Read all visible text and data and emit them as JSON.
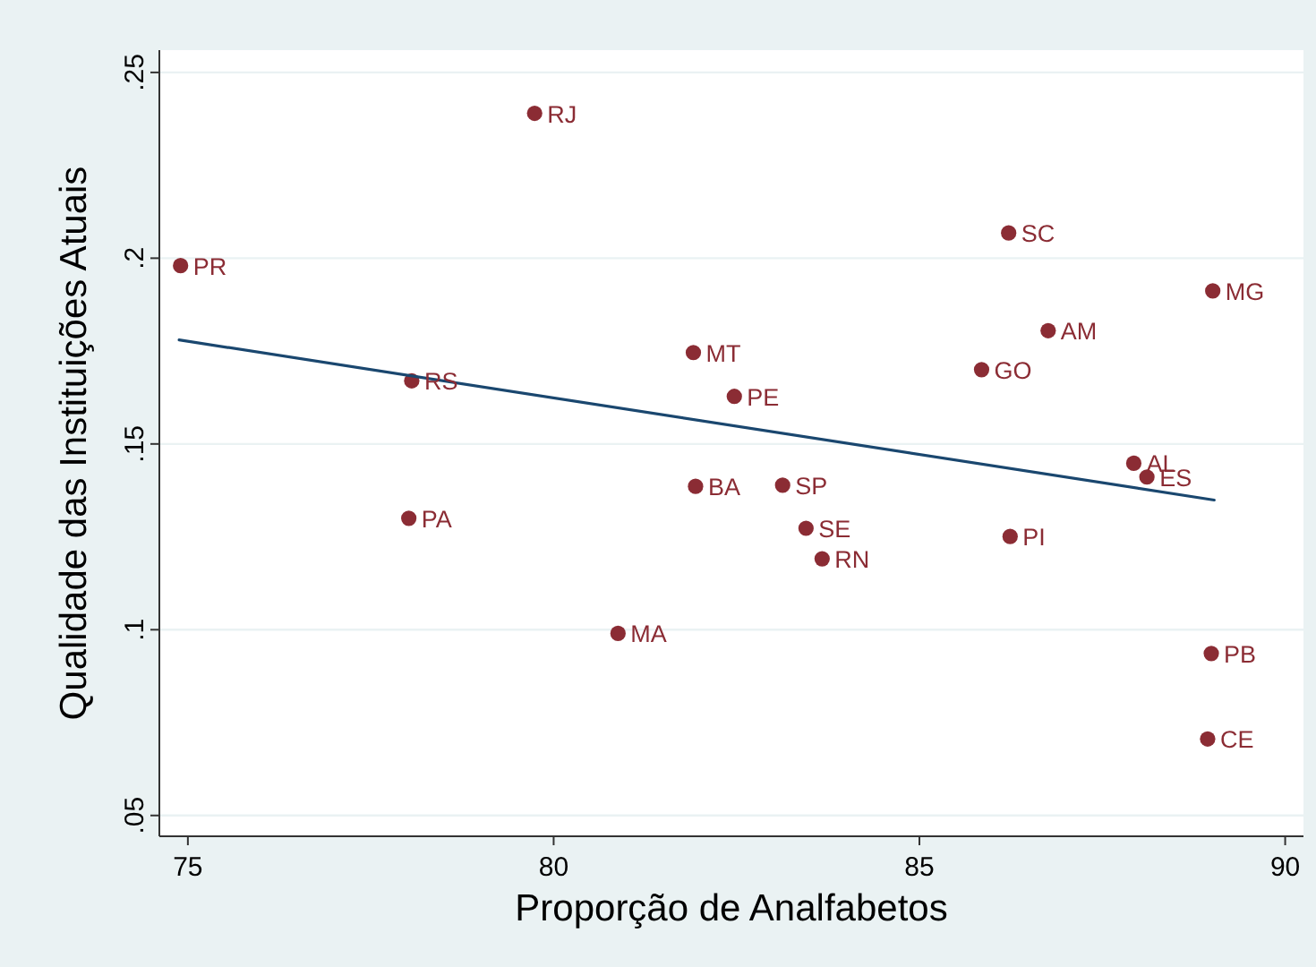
{
  "chart_data": {
    "type": "scatter",
    "xlabel": "Proporção de Analfabetos",
    "ylabel": "Qualidade das Instituições Atuais",
    "xlim": [
      74.61,
      90.25
    ],
    "ylim": [
      0.0444,
      0.256
    ],
    "xticks": [
      75,
      80,
      85,
      90
    ],
    "yticks": [
      {
        "value": 0.05,
        "label": ".05"
      },
      {
        "value": 0.1,
        "label": ".1"
      },
      {
        "value": 0.15,
        "label": ".15"
      },
      {
        "value": 0.2,
        "label": ".2"
      },
      {
        "value": 0.25,
        "label": ".25"
      }
    ],
    "grid": "y",
    "marker": "circle",
    "series": [
      {
        "type": "scatter",
        "color": "#8b2c34",
        "x": [
          74.9,
          79.74,
          78.06,
          78.02,
          80.88,
          81.91,
          81.94,
          86.22,
          89.01,
          86.76,
          85.85,
          82.47,
          87.93,
          88.11,
          83.13,
          83.45,
          83.67,
          86.24,
          88.99,
          88.94
        ],
        "values": [
          0.198,
          0.239,
          0.167,
          0.13,
          0.099,
          0.1746,
          0.1386,
          0.2068,
          0.1912,
          0.1805,
          0.17,
          0.1628,
          0.1448,
          0.1411,
          0.1389,
          0.1273,
          0.1191,
          0.1251,
          0.0936,
          0.0706
        ]
      },
      {
        "type": "line",
        "color": "#1a476f",
        "line_style": "solid",
        "marker": "none",
        "x": [
          74.88,
          89.03
        ],
        "values": [
          0.178,
          0.1349
        ]
      }
    ],
    "annotations": [
      {
        "text": "PR",
        "x": 74.9,
        "y": 0.198
      },
      {
        "text": "RJ",
        "x": 79.74,
        "y": 0.239
      },
      {
        "text": "RS",
        "x": 78.06,
        "y": 0.167
      },
      {
        "text": "PA",
        "x": 78.02,
        "y": 0.13
      },
      {
        "text": "MA",
        "x": 80.88,
        "y": 0.099
      },
      {
        "text": "MT",
        "x": 81.91,
        "y": 0.1746
      },
      {
        "text": "BA",
        "x": 81.94,
        "y": 0.1386
      },
      {
        "text": "SC",
        "x": 86.22,
        "y": 0.2068
      },
      {
        "text": "MG",
        "x": 89.01,
        "y": 0.1912
      },
      {
        "text": "AM",
        "x": 86.76,
        "y": 0.1805
      },
      {
        "text": "GO",
        "x": 85.85,
        "y": 0.17
      },
      {
        "text": "PE",
        "x": 82.47,
        "y": 0.1628
      },
      {
        "text": "AL",
        "x": 87.93,
        "y": 0.1448
      },
      {
        "text": "ES",
        "x": 88.11,
        "y": 0.1411
      },
      {
        "text": "SP",
        "x": 83.13,
        "y": 0.1389
      },
      {
        "text": "SE",
        "x": 83.45,
        "y": 0.1273
      },
      {
        "text": "RN",
        "x": 83.67,
        "y": 0.1191
      },
      {
        "text": "PI",
        "x": 86.24,
        "y": 0.1251
      },
      {
        "text": "PB",
        "x": 88.99,
        "y": 0.0936
      },
      {
        "text": "CE",
        "x": 88.94,
        "y": 0.0706
      }
    ]
  }
}
